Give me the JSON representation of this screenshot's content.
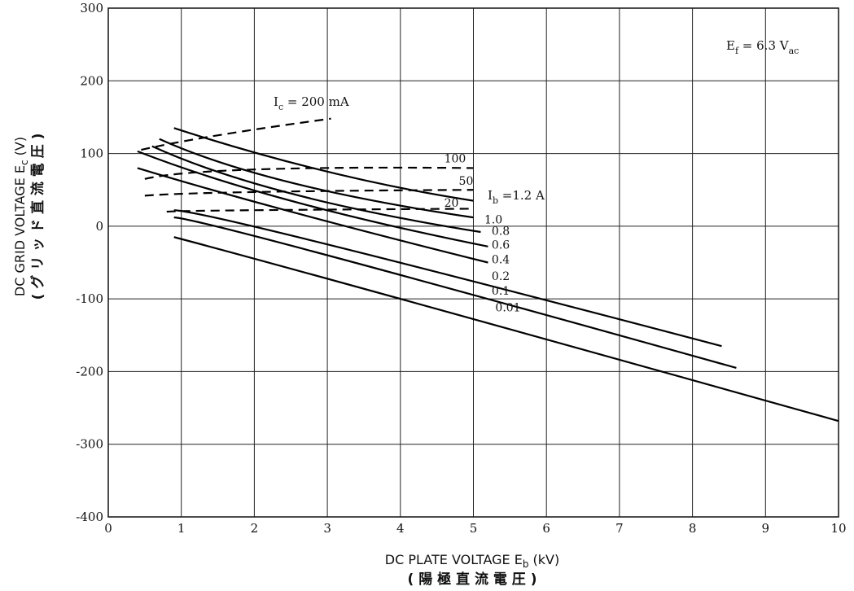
{
  "chart_data": {
    "type": "line",
    "xlabel": "DC PLATE VOLTAGE E",
    "xlabel_sub": "b",
    "xlabel_unit": " (kV)",
    "xlabel_jp": "( 陽 極 直 流 電 圧 )",
    "ylabel": "DC GRID VOLTAGE E",
    "ylabel_sub": "c",
    "ylabel_unit": " (V)",
    "ylabel_jp": "( グ リ ッ ド 直 流 電 圧 )",
    "xlim": [
      0,
      10
    ],
    "ylim": [
      -400,
      300
    ],
    "xticks": [
      "0",
      "1",
      "2",
      "3",
      "4",
      "5",
      "6",
      "7",
      "8",
      "9",
      "10"
    ],
    "yticks": [
      "300",
      "200",
      "100",
      "0",
      "-100",
      "-200",
      "-300",
      "-400"
    ],
    "grid": true,
    "annotation": {
      "main": "E",
      "sub": "f",
      "rest": " = 6.3 V",
      "rest_sub": "ac"
    },
    "plate_current_label": {
      "main": "I",
      "sub": "b",
      "rest": " =1.2 A"
    },
    "grid_current_label": {
      "main": "I",
      "sub": "c",
      "rest": " = 200 mA"
    },
    "series": [
      {
        "name": "1.2",
        "style": "solid",
        "x": [
          0.9,
          3.0,
          5.0
        ],
        "y": [
          135,
          75,
          35
        ]
      },
      {
        "name": "1.0",
        "style": "solid",
        "x": [
          0.7,
          2.5,
          5.0
        ],
        "y": [
          120,
          60,
          12
        ]
      },
      {
        "name": "0.8",
        "style": "solid",
        "x": [
          0.6,
          2.5,
          5.1
        ],
        "y": [
          110,
          45,
          -8
        ]
      },
      {
        "name": "0.6",
        "style": "solid",
        "x": [
          0.4,
          2.5,
          5.2
        ],
        "y": [
          103,
          35,
          -28
        ]
      },
      {
        "name": "0.4",
        "style": "solid",
        "x": [
          0.4,
          2.5,
          5.2
        ],
        "y": [
          80,
          20,
          -50
        ]
      },
      {
        "name": "0.2",
        "style": "solid",
        "x": [
          0.9,
          3.0,
          8.4
        ],
        "y": [
          22,
          -25,
          -165
        ]
      },
      {
        "name": "0.1",
        "style": "solid",
        "x": [
          0.9,
          3.0,
          8.6
        ],
        "y": [
          12,
          -40,
          -195
        ]
      },
      {
        "name": "0.01",
        "style": "solid",
        "x": [
          0.9,
          4.0,
          10.0
        ],
        "y": [
          -15,
          -100,
          -268
        ]
      },
      {
        "name": "200",
        "style": "dashed",
        "x": [
          0.45,
          1.5,
          3.05
        ],
        "y": [
          105,
          125,
          148
        ]
      },
      {
        "name": "100",
        "style": "dashed",
        "x": [
          0.5,
          2.0,
          5.0
        ],
        "y": [
          65,
          78,
          80
        ]
      },
      {
        "name": "50",
        "style": "dashed",
        "x": [
          0.5,
          2.0,
          5.0
        ],
        "y": [
          42,
          47,
          50
        ]
      },
      {
        "name": "20",
        "style": "dashed",
        "x": [
          0.8,
          2.0,
          5.0
        ],
        "y": [
          20,
          22,
          24
        ]
      }
    ],
    "labels": [
      {
        "text": "100",
        "x": 4.6,
        "y": 88
      },
      {
        "text": "50",
        "x": 4.8,
        "y": 57
      },
      {
        "text": "20",
        "x": 4.6,
        "y": 27
      },
      {
        "text": "1.0",
        "x": 5.15,
        "y": 4
      },
      {
        "text": "0.8",
        "x": 5.25,
        "y": -12
      },
      {
        "text": "0.6",
        "x": 5.25,
        "y": -31
      },
      {
        "text": "0.4",
        "x": 5.25,
        "y": -51
      },
      {
        "text": "0.2",
        "x": 5.25,
        "y": -74
      },
      {
        "text": "0.1",
        "x": 5.25,
        "y": -94
      },
      {
        "text": "0.01",
        "x": 5.3,
        "y": -117
      }
    ]
  }
}
